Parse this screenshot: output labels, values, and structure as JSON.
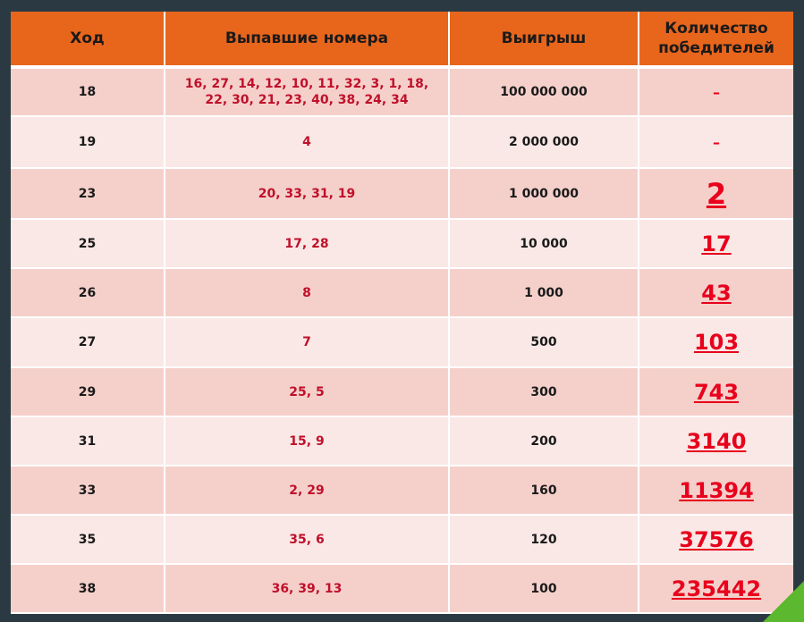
{
  "headers": {
    "move": "Ход",
    "numbers": "Выпавшие номера",
    "prize": "Выигрыш",
    "winners_line1": "Количество",
    "winners_line2": "победителей"
  },
  "rows": [
    {
      "move": "18",
      "numbers_line1": "16, 27, 14, 12, 10, 11, 32, 3, 1, 18,",
      "numbers_line2": "22, 30, 21, 23, 40, 38, 24, 34",
      "prize": "100 000 000",
      "winners": "–"
    },
    {
      "move": "19",
      "numbers_line1": "4",
      "numbers_line2": "",
      "prize": "2 000 000",
      "winners": "–"
    },
    {
      "move": "23",
      "numbers_line1": "20, 33, 31, 19",
      "numbers_line2": "",
      "prize": "1 000 000",
      "winners": "2"
    },
    {
      "move": "25",
      "numbers_line1": "17, 28",
      "numbers_line2": "",
      "prize": "10 000",
      "winners": "17"
    },
    {
      "move": "26",
      "numbers_line1": "8",
      "numbers_line2": "",
      "prize": "1 000",
      "winners": "43"
    },
    {
      "move": "27",
      "numbers_line1": "7",
      "numbers_line2": "",
      "prize": "500",
      "winners": "103"
    },
    {
      "move": "29",
      "numbers_line1": "25, 5",
      "numbers_line2": "",
      "prize": "300",
      "winners": "743"
    },
    {
      "move": "31",
      "numbers_line1": "15, 9",
      "numbers_line2": "",
      "prize": "200",
      "winners": "3140"
    },
    {
      "move": "33",
      "numbers_line1": "2, 29",
      "numbers_line2": "",
      "prize": "160",
      "winners": "11394"
    },
    {
      "move": "35",
      "numbers_line1": "35, 6",
      "numbers_line2": "",
      "prize": "120",
      "winners": "37576"
    },
    {
      "move": "38",
      "numbers_line1": "36, 39, 13",
      "numbers_line2": "",
      "prize": "100",
      "winners": "235442"
    }
  ],
  "colors": {
    "background": "#2b3a42",
    "header": "#e8651c",
    "row_dark": "#f5d0cb",
    "row_light": "#fae8e6",
    "numbers_text": "#c0102a",
    "winners_text": "#e8001c",
    "accent_triangle": "#5cb82e"
  }
}
